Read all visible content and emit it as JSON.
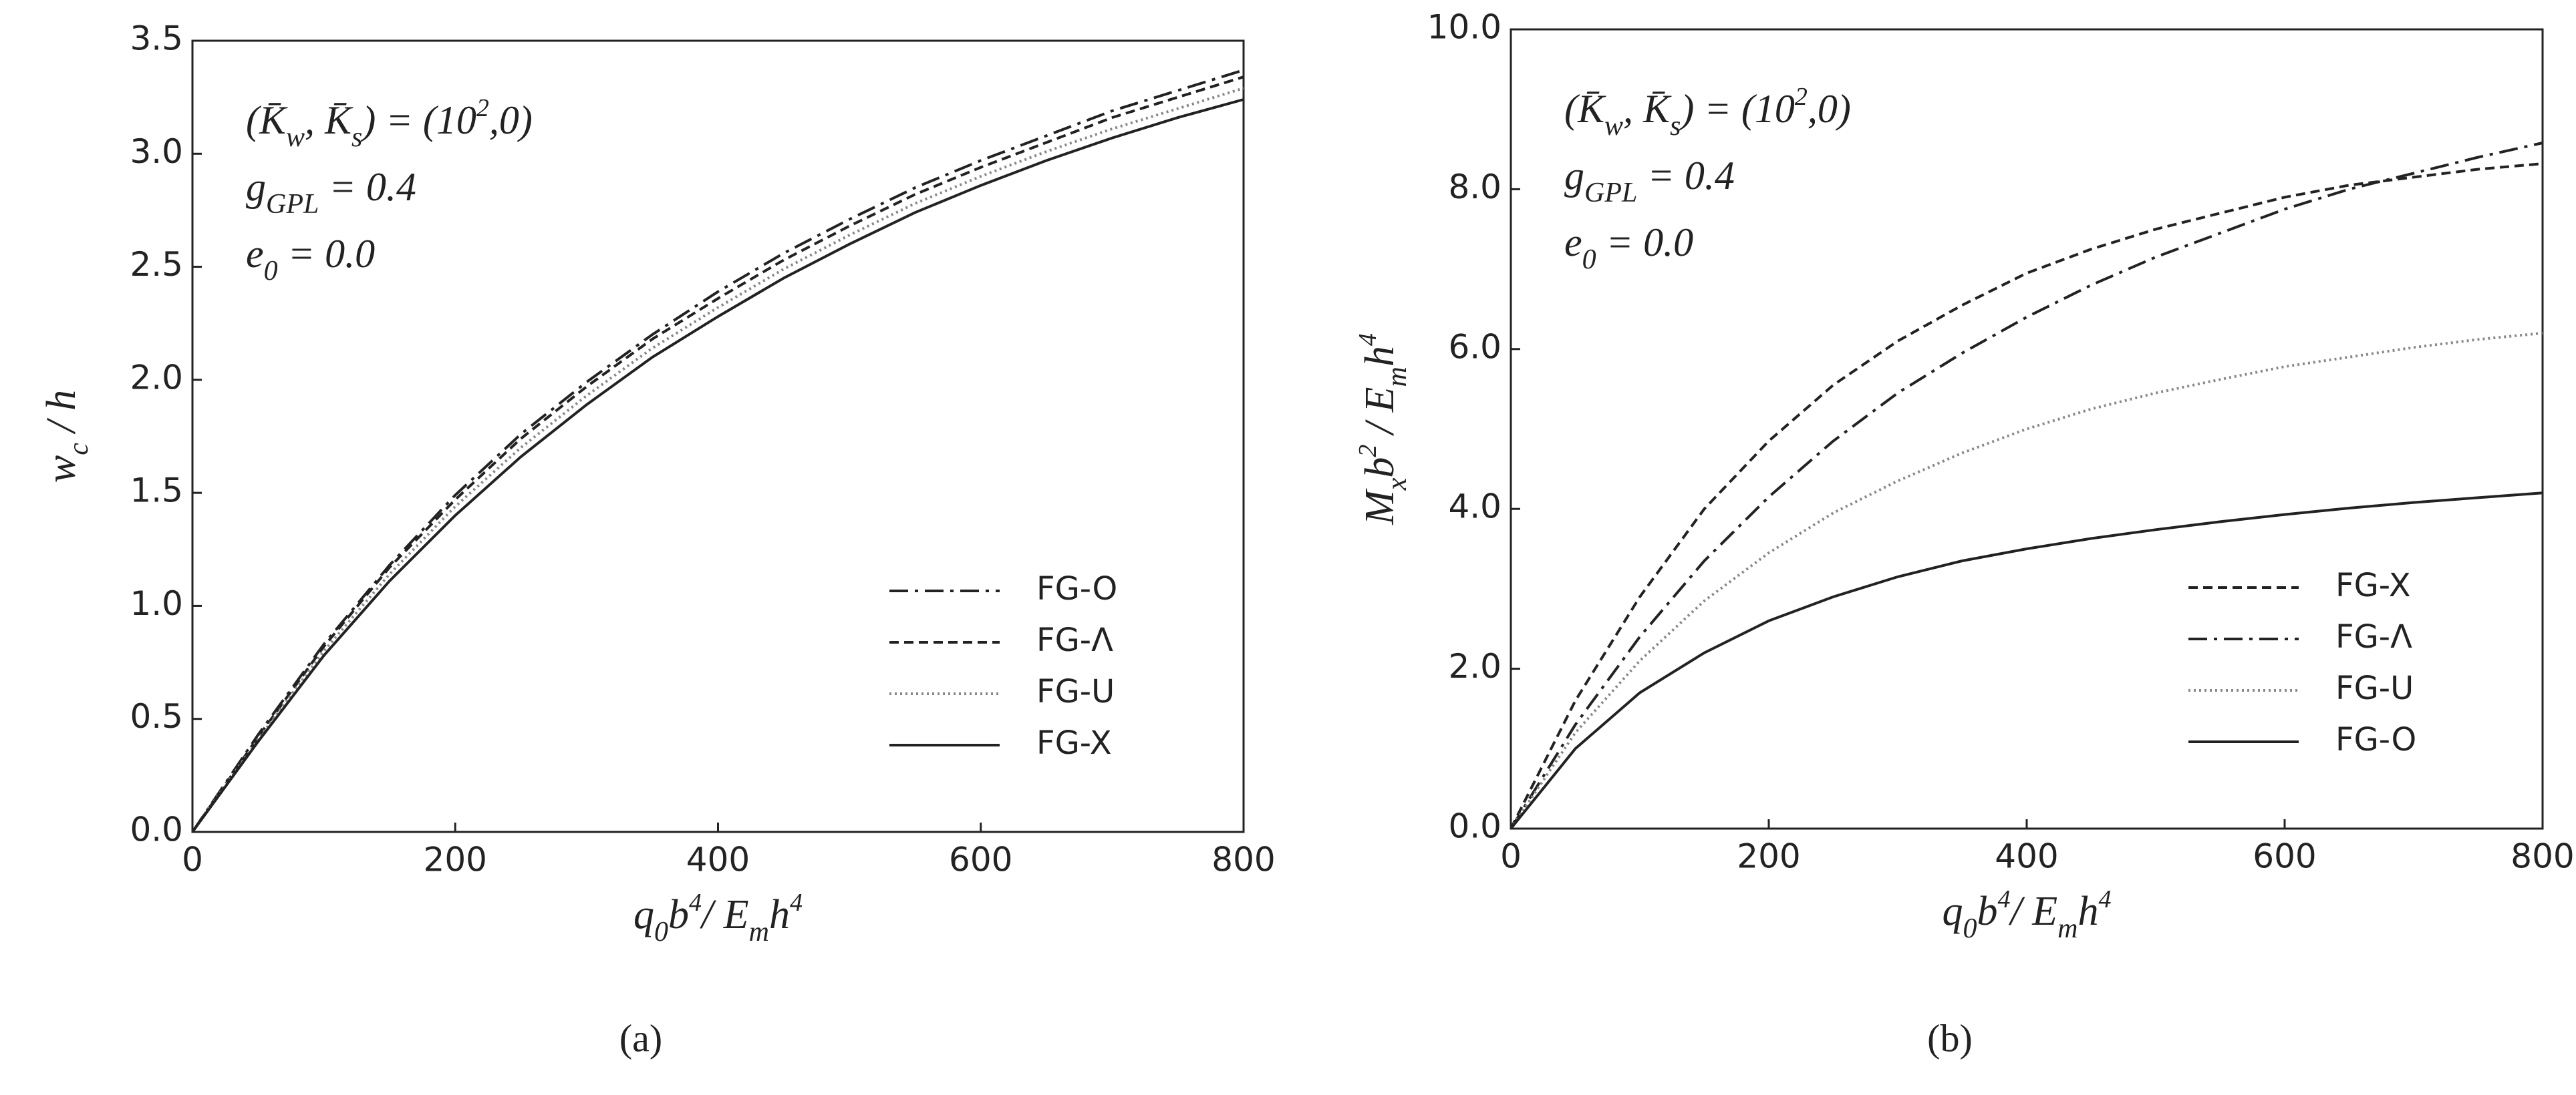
{
  "chart_data": [
    {
      "type": "line",
      "caption": "(a)",
      "xlabel": [
        {
          "t": "q",
          "sub": "0"
        },
        {
          "t": "b",
          "sup": "4"
        },
        {
          "t": "/ E",
          "sub": "m"
        },
        {
          "t": "h",
          "sup": "4"
        }
      ],
      "ylabel": [
        {
          "t": "w",
          "sub": "c"
        },
        {
          "t": " / h"
        }
      ],
      "annotations": [
        [
          {
            "t": "(K̄",
            "sub": "w"
          },
          {
            "t": ", K̄",
            "sub": "s"
          },
          {
            "t": ") = (10",
            "sup": "2"
          },
          {
            "t": ",0)"
          }
        ],
        [
          {
            "t": "g",
            "sub": "GPL"
          },
          {
            "t": " = 0.4"
          }
        ],
        [
          {
            "t": "e",
            "sub": "0"
          },
          {
            "t": " = 0.0"
          }
        ]
      ],
      "x": [
        0,
        50,
        100,
        150,
        200,
        250,
        300,
        350,
        400,
        450,
        500,
        550,
        600,
        650,
        700,
        750,
        800
      ],
      "series": [
        {
          "name": "FG-O",
          "color": "#222",
          "dash": "dashdot",
          "values": [
            0,
            0.43,
            0.83,
            1.18,
            1.49,
            1.76,
            1.99,
            2.2,
            2.39,
            2.56,
            2.71,
            2.85,
            2.97,
            3.08,
            3.19,
            3.28,
            3.37
          ]
        },
        {
          "name": "FG-Λ",
          "color": "#222",
          "dash": "dashed",
          "values": [
            0,
            0.42,
            0.82,
            1.17,
            1.47,
            1.74,
            1.97,
            2.18,
            2.36,
            2.53,
            2.68,
            2.82,
            2.94,
            3.05,
            3.16,
            3.25,
            3.34
          ]
        },
        {
          "name": "FG-U",
          "color": "#888",
          "dash": "dotted",
          "values": [
            0,
            0.41,
            0.8,
            1.14,
            1.44,
            1.7,
            1.93,
            2.14,
            2.32,
            2.49,
            2.64,
            2.78,
            2.9,
            3.01,
            3.11,
            3.2,
            3.29
          ]
        },
        {
          "name": "FG-X",
          "color": "#222",
          "dash": "solid",
          "values": [
            0,
            0.4,
            0.78,
            1.11,
            1.4,
            1.66,
            1.89,
            2.1,
            2.28,
            2.45,
            2.6,
            2.74,
            2.86,
            2.97,
            3.07,
            3.16,
            3.24
          ]
        }
      ],
      "xlim": [
        0,
        800
      ],
      "xticks": [
        0,
        200,
        400,
        600,
        800
      ],
      "ylim": [
        0,
        3.5
      ],
      "yticks": [
        {
          "value": 0,
          "label": "0.0"
        },
        {
          "value": 0.5,
          "label": "0.5"
        },
        {
          "value": 1,
          "label": "1.0"
        },
        {
          "value": 1.5,
          "label": "1.5"
        },
        {
          "value": 2,
          "label": "2.0"
        },
        {
          "value": 2.5,
          "label": "2.5"
        },
        {
          "value": 3,
          "label": "3.0"
        },
        {
          "value": 3.5,
          "label": "3.5"
        }
      ],
      "legend": "lower right",
      "grid": false
    },
    {
      "type": "line",
      "caption": "(b)",
      "xlabel": [
        {
          "t": "q",
          "sub": "0"
        },
        {
          "t": "b",
          "sup": "4"
        },
        {
          "t": "/ E",
          "sub": "m"
        },
        {
          "t": "h",
          "sup": "4"
        }
      ],
      "ylabel": [
        {
          "t": "M",
          "sub": "x"
        },
        {
          "t": "b",
          "sup": "2"
        },
        {
          "t": " / E",
          "sub": "m"
        },
        {
          "t": "h",
          "sup": "4"
        }
      ],
      "annotations": [
        [
          {
            "t": "(K̄",
            "sub": "w"
          },
          {
            "t": ", K̄",
            "sub": "s"
          },
          {
            "t": ") = (10",
            "sup": "2"
          },
          {
            "t": ",0)"
          }
        ],
        [
          {
            "t": "g",
            "sub": "GPL"
          },
          {
            "t": " = 0.4"
          }
        ],
        [
          {
            "t": "e",
            "sub": "0"
          },
          {
            "t": " = 0.0"
          }
        ]
      ],
      "x": [
        0,
        50,
        100,
        150,
        200,
        250,
        300,
        350,
        400,
        450,
        500,
        550,
        600,
        650,
        700,
        750,
        800
      ],
      "series": [
        {
          "name": "FG-X",
          "color": "#222",
          "dash": "dashed",
          "values": [
            0,
            1.6,
            2.9,
            4.0,
            4.85,
            5.55,
            6.1,
            6.55,
            6.95,
            7.25,
            7.5,
            7.7,
            7.9,
            8.05,
            8.15,
            8.25,
            8.32
          ]
        },
        {
          "name": "FG-Λ",
          "color": "#222",
          "dash": "dashdot",
          "values": [
            0,
            1.3,
            2.4,
            3.35,
            4.15,
            4.85,
            5.45,
            5.95,
            6.4,
            6.8,
            7.15,
            7.45,
            7.75,
            8.0,
            8.2,
            8.4,
            8.58
          ]
        },
        {
          "name": "FG-U",
          "color": "#888",
          "dash": "dotted",
          "values": [
            0,
            1.2,
            2.1,
            2.85,
            3.45,
            3.95,
            4.35,
            4.7,
            5.0,
            5.25,
            5.45,
            5.62,
            5.78,
            5.9,
            6.02,
            6.12,
            6.2
          ]
        },
        {
          "name": "FG-O",
          "color": "#222",
          "dash": "solid",
          "values": [
            0,
            1.0,
            1.7,
            2.2,
            2.6,
            2.9,
            3.15,
            3.35,
            3.5,
            3.63,
            3.74,
            3.84,
            3.93,
            4.01,
            4.08,
            4.14,
            4.2
          ]
        }
      ],
      "xlim": [
        0,
        800
      ],
      "xticks": [
        0,
        200,
        400,
        600,
        800
      ],
      "ylim": [
        0,
        10
      ],
      "yticks": [
        {
          "value": 0,
          "label": "0.0"
        },
        {
          "value": 2,
          "label": "2.0"
        },
        {
          "value": 4,
          "label": "4.0"
        },
        {
          "value": 6,
          "label": "6.0"
        },
        {
          "value": 8,
          "label": "8.0"
        },
        {
          "value": 10,
          "label": "10.0"
        }
      ],
      "legend": "lower right",
      "grid": false
    }
  ]
}
